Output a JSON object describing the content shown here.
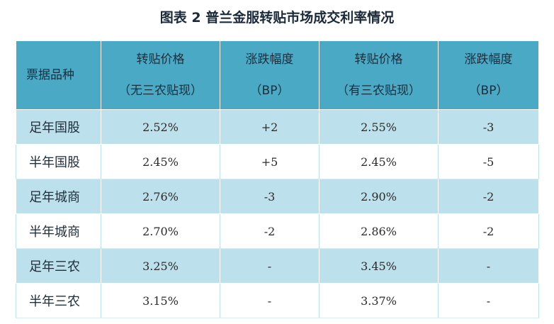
{
  "title": "图表 2 普兰金服转贴市场成交利率情况",
  "table": {
    "header": {
      "category": "票据品种",
      "col1_line1": "转贴价格",
      "col1_line2": "（无三农贴现）",
      "col2_line1": "涨跌幅度",
      "col2_line2": "（BP）",
      "col3_line1": "转贴价格",
      "col3_line2": "（有三农贴现）",
      "col4_line1": "涨跌幅度",
      "col4_line2": "（BP）"
    },
    "rows": [
      {
        "name": "足年国股",
        "price_no": "2.52%",
        "chg_no": "+2",
        "price_yes": "2.55%",
        "chg_yes": "-3"
      },
      {
        "name": "半年国股",
        "price_no": "2.45%",
        "chg_no": "+5",
        "price_yes": "2.45%",
        "chg_yes": "-5"
      },
      {
        "name": "足年城商",
        "price_no": "2.76%",
        "chg_no": "-3",
        "price_yes": "2.90%",
        "chg_yes": "-2"
      },
      {
        "name": "半年城商",
        "price_no": "2.70%",
        "chg_no": "-2",
        "price_yes": "2.86%",
        "chg_yes": "-2"
      },
      {
        "name": "足年三农",
        "price_no": "3.25%",
        "chg_no": "-",
        "price_yes": "3.45%",
        "chg_yes": "-"
      },
      {
        "name": "半年三农",
        "price_no": "3.15%",
        "chg_no": "-",
        "price_yes": "3.37%",
        "chg_yes": "-"
      }
    ]
  }
}
